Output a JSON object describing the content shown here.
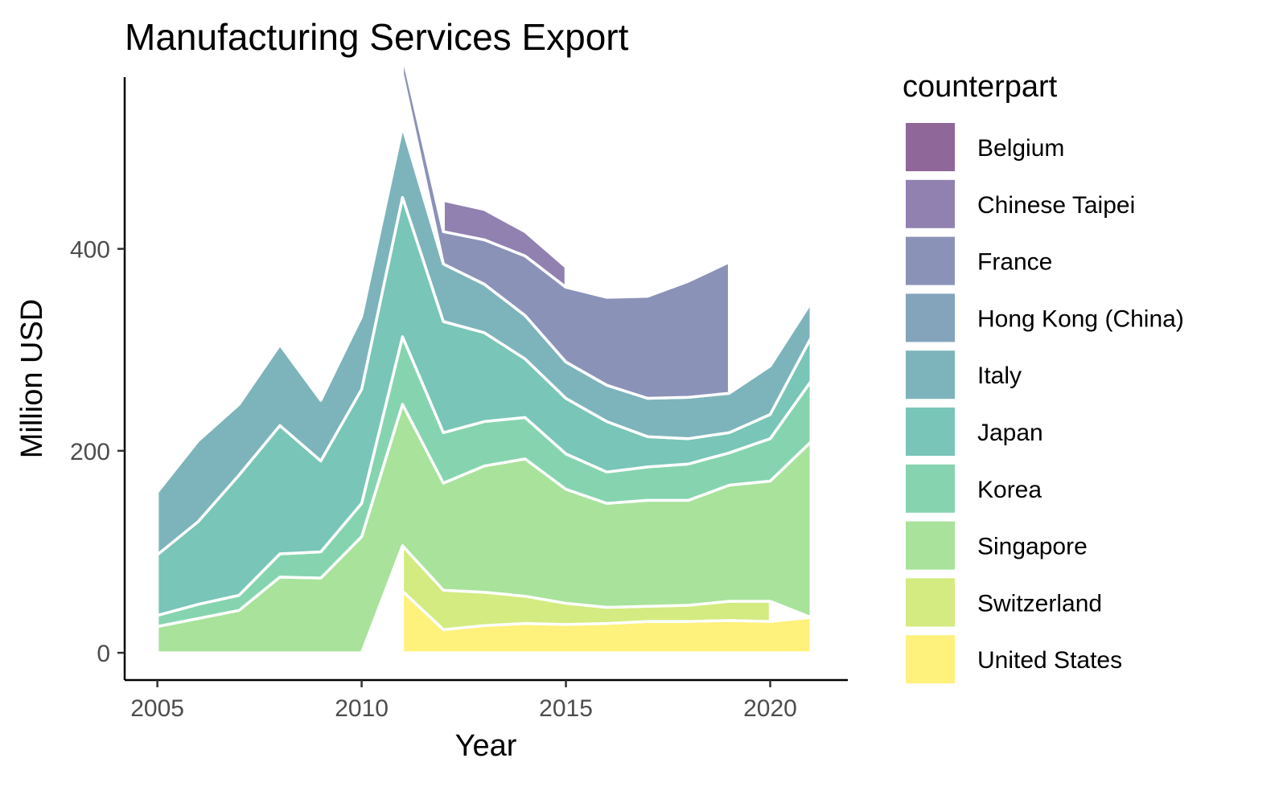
{
  "chart_data": {
    "type": "area",
    "stacked": true,
    "title": "Manufacturing Services Export",
    "xlabel": "Year",
    "ylabel": "Million USD",
    "xlim": [
      2004.2,
      2021.9
    ],
    "ylim": [
      -27,
      570
    ],
    "x_ticks": [
      2005,
      2010,
      2015,
      2020
    ],
    "y_ticks": [
      0,
      200,
      400
    ],
    "grid": false,
    "legend": {
      "title": "counterpart",
      "position": "right"
    },
    "x": [
      2005,
      2006,
      2007,
      2008,
      2009,
      2010,
      2011,
      2012,
      2013,
      2014,
      2015,
      2016,
      2017,
      2018,
      2019,
      2020,
      2021
    ],
    "series": [
      {
        "name": "United States",
        "color": "#FDE725",
        "values": [
          null,
          null,
          null,
          null,
          null,
          null,
          61,
          23,
          27,
          29,
          28,
          29,
          31,
          31,
          32,
          31,
          35
        ]
      },
      {
        "name": "Switzerland",
        "color": "#B5DE2B",
        "values": [
          null,
          null,
          null,
          null,
          null,
          null,
          45,
          39,
          33,
          27,
          21,
          16,
          15,
          16,
          19,
          20,
          null
        ]
      },
      {
        "name": "Singapore",
        "color": "#6ECE58",
        "values": [
          26,
          34,
          42,
          75,
          74,
          115,
          140,
          106,
          125,
          136,
          113,
          103,
          105,
          104,
          115,
          119,
          174
        ]
      },
      {
        "name": "Korea",
        "color": "#35B779",
        "values": [
          11,
          14,
          15,
          23,
          26,
          33,
          67,
          50,
          44,
          41,
          35,
          31,
          33,
          36,
          32,
          42,
          60
        ]
      },
      {
        "name": "Japan",
        "color": "#1F9E89",
        "values": [
          60,
          82,
          119,
          127,
          90,
          113,
          138,
          110,
          88,
          58,
          55,
          50,
          30,
          25,
          20,
          24,
          43
        ]
      },
      {
        "name": "Italy",
        "color": "#26828E",
        "values": [
          62,
          80,
          70,
          80,
          60,
          72,
          70,
          57,
          48,
          43,
          36,
          36,
          38,
          41,
          39,
          48,
          35
        ]
      },
      {
        "name": "Hong Kong (China)",
        "color": "#31688E",
        "values": [
          null,
          null,
          null,
          null,
          null,
          null,
          52,
          null,
          null,
          null,
          null,
          null,
          null,
          null,
          null,
          null,
          null
        ]
      },
      {
        "name": "France",
        "color": "#3E4A89",
        "values": [
          null,
          null,
          null,
          null,
          null,
          null,
          20,
          32,
          44,
          59,
          74,
          87,
          101,
          115,
          130,
          null,
          null
        ]
      },
      {
        "name": "Chinese Taipei",
        "color": "#472D7B",
        "values": [
          null,
          null,
          null,
          null,
          null,
          null,
          null,
          31,
          30,
          24,
          20,
          null,
          null,
          null,
          null,
          null,
          null
        ]
      },
      {
        "name": "Belgium",
        "color": "#440154",
        "values": [
          null,
          null,
          null,
          null,
          null,
          null,
          null,
          null,
          null,
          null,
          null,
          null,
          null,
          null,
          null,
          null,
          null
        ]
      }
    ]
  }
}
